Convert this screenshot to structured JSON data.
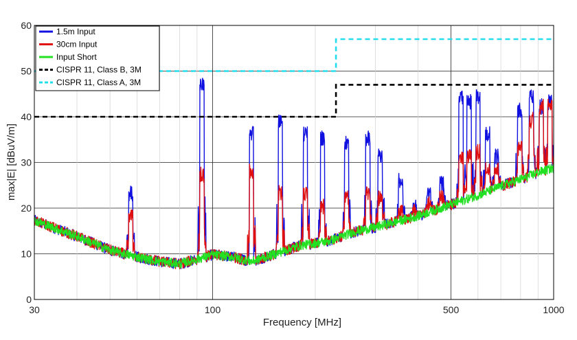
{
  "chart_data": {
    "type": "line",
    "xscale": "log",
    "xlabel": "Frequency [MHz]",
    "ylabel": "max|E| [dBuV/m]",
    "xlim": [
      30,
      1000
    ],
    "ylim": [
      0,
      60
    ],
    "xticks": [
      30,
      100,
      500,
      1000
    ],
    "xtick_labels": [
      "30",
      "100",
      "500",
      "1000"
    ],
    "yticks": [
      0,
      10,
      20,
      30,
      40,
      50,
      60
    ],
    "ytick_labels": [
      "0",
      "10",
      "20",
      "30",
      "40",
      "50",
      "60"
    ],
    "grid": true,
    "legend_position": "top-left",
    "series": [
      {
        "name": "1.5m Input",
        "color": "#1010e0",
        "style": "solid",
        "noise": 1.2,
        "peaks": [
          [
            57.5,
            25
          ],
          [
            93,
            49
          ],
          [
            130,
            38
          ],
          [
            158,
            41
          ],
          [
            187,
            38
          ],
          [
            210,
            37
          ],
          [
            247,
            36
          ],
          [
            285,
            37
          ],
          [
            310,
            33
          ],
          [
            356,
            28
          ],
          [
            392,
            22
          ],
          [
            430,
            25
          ],
          [
            470,
            27
          ],
          [
            535,
            46
          ],
          [
            565,
            45
          ],
          [
            600,
            46
          ],
          [
            640,
            38
          ],
          [
            680,
            33
          ],
          [
            795,
            43
          ],
          [
            860,
            46
          ],
          [
            920,
            44
          ],
          [
            975,
            45
          ]
        ]
      },
      {
        "name": "30cm Input",
        "color": "#e01010",
        "style": "solid",
        "noise": 1.2,
        "peaks": [
          [
            57.5,
            20
          ],
          [
            93,
            29
          ],
          [
            130,
            30
          ],
          [
            158,
            25
          ],
          [
            187,
            25
          ],
          [
            210,
            22
          ],
          [
            247,
            24
          ],
          [
            285,
            25
          ],
          [
            310,
            24
          ],
          [
            356,
            21
          ],
          [
            392,
            21
          ],
          [
            430,
            23
          ],
          [
            470,
            24
          ],
          [
            535,
            33
          ],
          [
            565,
            33
          ],
          [
            600,
            34
          ],
          [
            640,
            30
          ],
          [
            680,
            30
          ],
          [
            795,
            35
          ],
          [
            860,
            41
          ],
          [
            920,
            44
          ],
          [
            975,
            44
          ]
        ]
      },
      {
        "name": "Input Short",
        "color": "#22e022",
        "style": "solid",
        "noise": 1.0,
        "baseline": [
          [
            30,
            17.5
          ],
          [
            40,
            14
          ],
          [
            50,
            11
          ],
          [
            60,
            9.5
          ],
          [
            70,
            8.5
          ],
          [
            80,
            8
          ],
          [
            90,
            9
          ],
          [
            100,
            10
          ],
          [
            115,
            9.5
          ],
          [
            130,
            8.5
          ],
          [
            150,
            10
          ],
          [
            180,
            12
          ],
          [
            220,
            13
          ],
          [
            260,
            15
          ],
          [
            300,
            16
          ],
          [
            400,
            18.5
          ],
          [
            500,
            21
          ],
          [
            600,
            23
          ],
          [
            700,
            25
          ],
          [
            800,
            26.5
          ],
          [
            900,
            28
          ],
          [
            1000,
            29
          ]
        ]
      },
      {
        "name": "CISPR 11, Class B, 3M",
        "color": "#000000",
        "style": "dashed",
        "x": [
          30,
          230,
          230,
          1000
        ],
        "y": [
          40,
          40,
          47,
          47
        ]
      },
      {
        "name": "CISPR 11, Class A, 3M",
        "color": "#22ddee",
        "style": "dashed",
        "x": [
          30,
          230,
          230,
          1000
        ],
        "y": [
          50,
          50,
          57,
          57
        ]
      }
    ]
  }
}
